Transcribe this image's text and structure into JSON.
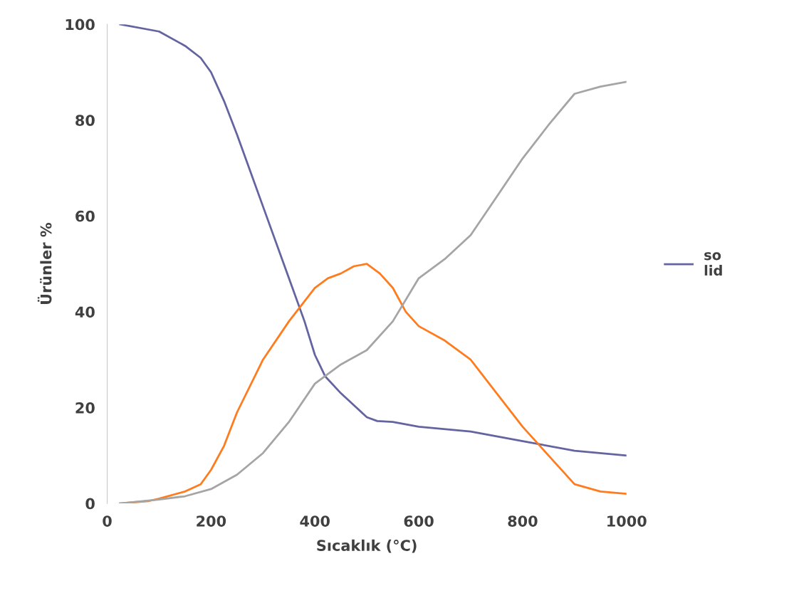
{
  "chart_data": {
    "type": "line",
    "xlabel": "Sıcaklık (°C)",
    "ylabel": "Ürünler %",
    "xlim": [
      0,
      1000
    ],
    "ylim": [
      0,
      100
    ],
    "xticks": [
      0,
      200,
      400,
      600,
      800,
      1000
    ],
    "yticks": [
      0,
      20,
      40,
      60,
      80,
      100
    ],
    "grid": false,
    "legend": "right",
    "marker": "none",
    "line_style": "solid",
    "series": [
      {
        "name": "so\nlid",
        "color": "#6464a0",
        "x": [
          25,
          100,
          150,
          180,
          200,
          225,
          250,
          300,
          350,
          380,
          400,
          420,
          450,
          480,
          500,
          520,
          550,
          600,
          700,
          800,
          900,
          1000
        ],
        "values": [
          100,
          98.5,
          95.5,
          93,
          90,
          84,
          77,
          62,
          47,
          38,
          31,
          26.5,
          23,
          20,
          18,
          17.2,
          17,
          16,
          15,
          13,
          11,
          10
        ]
      },
      {
        "color": "#ff7c1e",
        "x": [
          25,
          80,
          100,
          150,
          180,
          200,
          225,
          250,
          300,
          350,
          400,
          425,
          450,
          475,
          500,
          525,
          550,
          575,
          600,
          650,
          700,
          750,
          800,
          850,
          900,
          950,
          1000
        ],
        "values": [
          0,
          0.5,
          1,
          2.5,
          4,
          7,
          12,
          19,
          30,
          38,
          45,
          47,
          48,
          49.5,
          50,
          48,
          45,
          40,
          37,
          34,
          30,
          23,
          16,
          10,
          4,
          2.5,
          2
        ]
      },
      {
        "color": "#a5a5a5",
        "x": [
          25,
          100,
          150,
          200,
          250,
          300,
          350,
          400,
          450,
          500,
          550,
          600,
          650,
          700,
          750,
          800,
          850,
          900,
          950,
          1000
        ],
        "values": [
          0,
          0.8,
          1.5,
          3,
          6,
          10.5,
          17,
          25,
          29,
          32,
          38,
          47,
          51,
          56,
          64,
          72,
          79,
          85.5,
          87,
          88
        ]
      }
    ]
  }
}
